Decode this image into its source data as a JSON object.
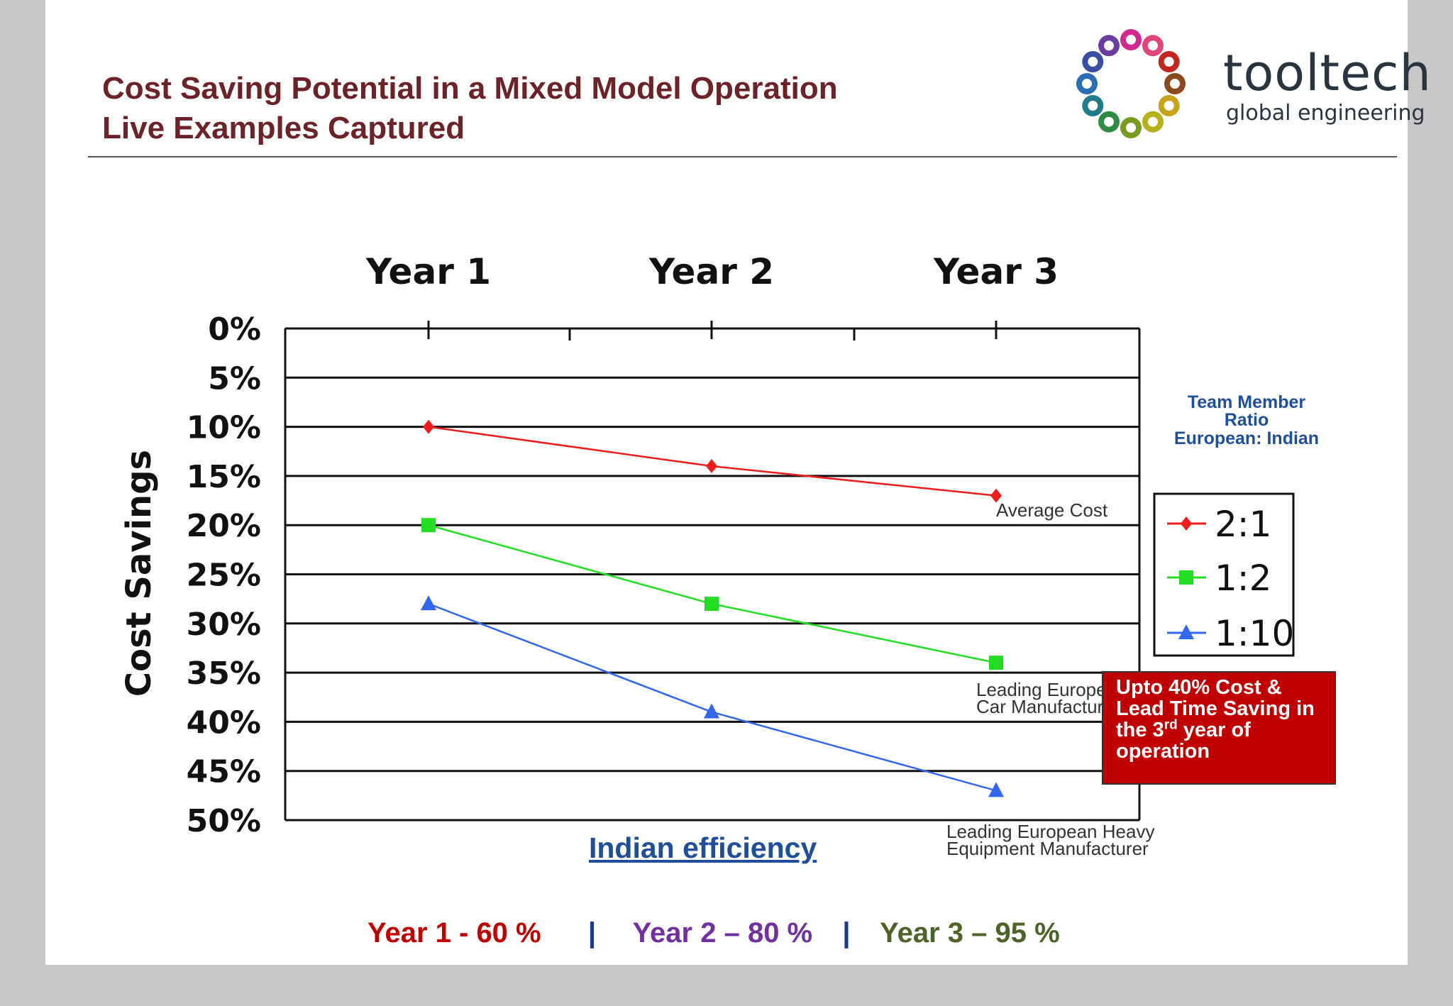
{
  "header": {
    "title_line1": "Cost Saving Potential in a Mixed Model Operation",
    "title_line2": "Live Examples Captured"
  },
  "logo": {
    "name": "tooltech",
    "tagline": "global engineering",
    "petal_colors": [
      "#d0288c",
      "#e0457b",
      "#c2261e",
      "#8a4b1e",
      "#c9a21c",
      "#b5b21c",
      "#7a9b22",
      "#2f8a45",
      "#1f7a8a",
      "#2b6db5",
      "#3a4ea6",
      "#6a3da0"
    ]
  },
  "chart_data": {
    "type": "line",
    "categories": [
      "Year 1",
      "Year 2",
      "Year 3"
    ],
    "y_tick_labels": [
      "0%",
      "5%",
      "10%",
      "15%",
      "20%",
      "25%",
      "30%",
      "35%",
      "40%",
      "45%",
      "50%"
    ],
    "ylabel": "Cost Savings",
    "xlabel": "Indian efficiency",
    "ylim": [
      0,
      50
    ],
    "y_inverted": true,
    "x_axis_position": "top",
    "grid": true,
    "series": [
      {
        "name": "2:1",
        "values": [
          10,
          14,
          17
        ],
        "color": "#ee1c1c",
        "marker": "diamond",
        "annotation": "Average Cost"
      },
      {
        "name": "1:2",
        "values": [
          20,
          28,
          34
        ],
        "color": "#22dd22",
        "marker": "square",
        "annotation": "Leading European Car Manufacturer"
      },
      {
        "name": "1:10",
        "values": [
          28,
          39,
          47
        ],
        "color": "#3366ee",
        "marker": "triangle",
        "annotation": "Leading European Heavy Equipment Manufacturer"
      }
    ],
    "annotations": {
      "average_cost": "Average Cost",
      "car_line1": "Leading European",
      "car_line2": "Car Manufacturer",
      "heavy_line1": "Leading European Heavy",
      "heavy_line2": "Equipment Manufacturer"
    },
    "legend": {
      "title_line1": "Team Member",
      "title_line2": "Ratio",
      "title_line3": "European: Indian",
      "placement": "right"
    }
  },
  "callout": {
    "line1": "Upto 40% Cost &",
    "line2": "Lead Time Saving in",
    "line3_pre": "the 3",
    "line3_sup": "rd",
    "line3_post": " year of",
    "line4": "operation",
    "color": "#c00000"
  },
  "footer": {
    "year1": "Year 1 -  60 %",
    "sep": "|",
    "year2": "Year 2 – 80 %",
    "year3": "Year 3 – 95 %"
  }
}
